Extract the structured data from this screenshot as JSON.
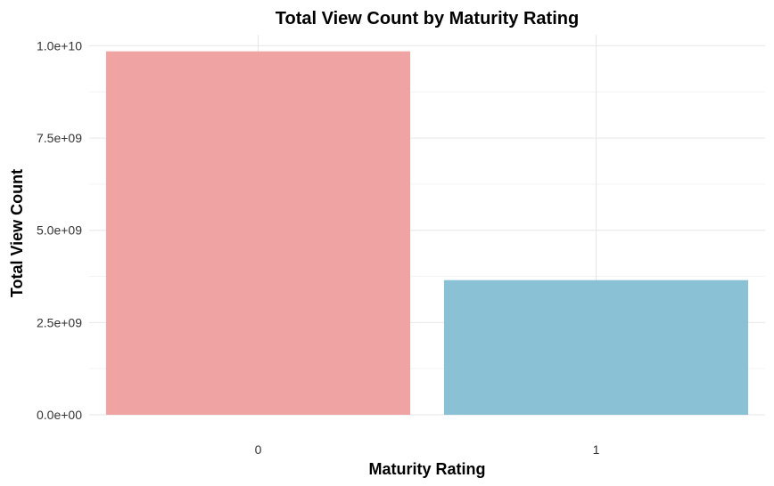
{
  "chart_data": {
    "type": "bar",
    "title": "Total View Count by Maturity Rating",
    "xlabel": "Maturity Rating",
    "ylabel": "Total View Count",
    "categories": [
      "0",
      "1"
    ],
    "values": [
      9850000000,
      3650000000
    ],
    "colors": [
      "#F0A3A3",
      "#8BC1D4"
    ],
    "ylim": [
      0,
      10000000000
    ],
    "yticks": [
      0,
      2500000000,
      5000000000,
      7500000000,
      10000000000
    ],
    "ytick_labels": [
      "0.0e+00",
      "2.5e+09",
      "5.0e+09",
      "7.5e+09",
      "1.0e+10"
    ],
    "grid": true,
    "legend": "none"
  }
}
